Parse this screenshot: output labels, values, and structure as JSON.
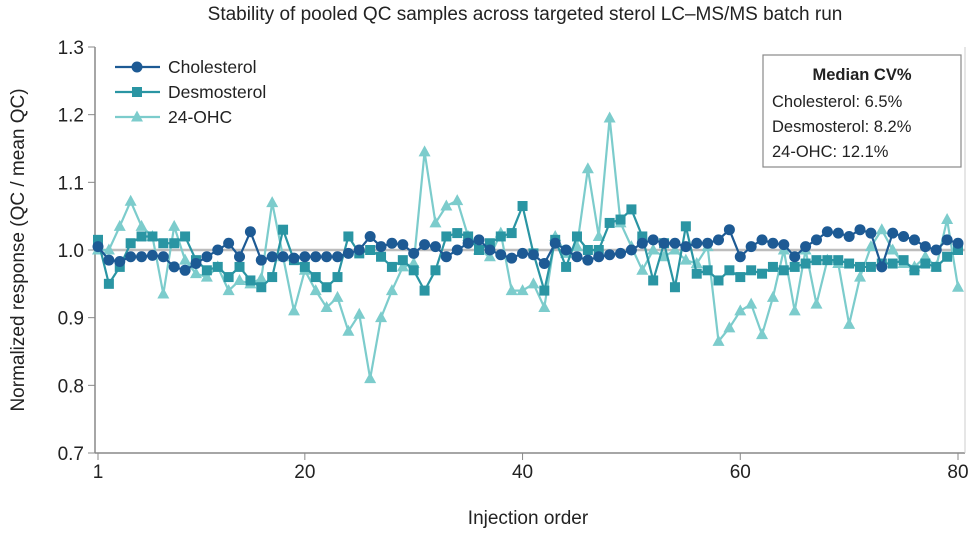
{
  "chart_data": {
    "type": "line",
    "title": "Stability of pooled QC samples across targeted sterol LC–MS/MS batch run",
    "xlabel": "Injection order",
    "ylabel": "Normalized response (QC / mean QC)",
    "xlim": [
      1,
      80
    ],
    "ylim": [
      0.7,
      1.3
    ],
    "xticks": [
      1,
      20,
      40,
      60,
      80
    ],
    "yticks": [
      "0.7",
      "0.8",
      "0.9",
      "1.0",
      "1.1",
      "1.2",
      "1.3"
    ],
    "grid": false,
    "legend_position": "top-left",
    "reference_line": {
      "y": 1.0,
      "color": "#bdbdbd"
    },
    "annotation": {
      "title": "Median CV%",
      "lines": [
        "Cholesterol: 6.5%",
        "Desmosterol: 8.2%",
        "24-OHC: 12.1%"
      ]
    },
    "series": [
      {
        "name": "Cholesterol",
        "marker": "circle",
        "color": "#1d5a94",
        "values": [
          1.005,
          0.985,
          0.983,
          0.99,
          0.99,
          0.992,
          0.99,
          0.975,
          0.97,
          0.98,
          0.99,
          1.0,
          1.01,
          0.99,
          1.027,
          0.985,
          0.99,
          0.99,
          0.988,
          0.99,
          0.99,
          0.99,
          0.99,
          0.995,
          1.0,
          1.02,
          1.005,
          1.01,
          1.008,
          0.995,
          1.008,
          1.005,
          0.99,
          1.0,
          1.01,
          1.015,
          1.0,
          0.993,
          0.988,
          0.995,
          0.993,
          0.98,
          1.01,
          1.0,
          0.99,
          0.985,
          0.99,
          0.993,
          0.995,
          1.0,
          1.01,
          1.015,
          1.01,
          1.01,
          1.005,
          1.01,
          1.01,
          1.015,
          1.03,
          0.99,
          1.005,
          1.015,
          1.01,
          1.008,
          0.99,
          1.005,
          1.015,
          1.027,
          1.025,
          1.02,
          1.03,
          1.025,
          0.975,
          1.025,
          1.02,
          1.015,
          1.005,
          1.0,
          1.015,
          1.01
        ]
      },
      {
        "name": "Desmosterol",
        "marker": "square",
        "color": "#2a95a3",
        "values": [
          1.015,
          0.95,
          0.975,
          1.01,
          1.02,
          1.02,
          1.01,
          1.01,
          1.02,
          0.985,
          0.97,
          0.975,
          0.96,
          0.975,
          0.955,
          0.945,
          0.96,
          1.03,
          0.985,
          0.975,
          0.96,
          0.945,
          0.96,
          1.02,
          0.995,
          1.0,
          0.99,
          0.975,
          0.985,
          0.97,
          0.94,
          0.97,
          1.02,
          1.025,
          1.02,
          1.0,
          1.01,
          1.02,
          1.025,
          1.065,
          0.995,
          0.94,
          1.015,
          0.975,
          1.02,
          1.0,
          1.0,
          1.04,
          1.045,
          1.06,
          1.02,
          0.955,
          1.01,
          0.945,
          1.035,
          0.965,
          0.97,
          0.955,
          0.97,
          0.96,
          0.97,
          0.965,
          0.975,
          0.97,
          0.975,
          0.98,
          0.985,
          0.985,
          0.985,
          0.98,
          0.975,
          0.975,
          0.98,
          0.98,
          0.985,
          0.97,
          0.98,
          0.975,
          0.99,
          1.0
        ]
      },
      {
        "name": "24-OHC",
        "marker": "triangle",
        "color": "#7ccccc",
        "values": [
          1.0,
          1.0,
          1.035,
          1.072,
          1.035,
          1.02,
          0.935,
          1.035,
          0.985,
          0.965,
          0.96,
          0.975,
          0.94,
          0.955,
          0.95,
          0.958,
          1.07,
          0.99,
          0.91,
          0.97,
          0.94,
          0.915,
          0.93,
          0.88,
          0.905,
          0.81,
          0.9,
          0.94,
          0.975,
          0.98,
          1.145,
          1.04,
          1.065,
          1.073,
          1.02,
          1.0,
          0.99,
          1.025,
          0.94,
          0.94,
          0.95,
          0.915,
          1.02,
          0.995,
          1.005,
          1.12,
          1.02,
          1.195,
          1.04,
          1.005,
          0.97,
          1.0,
          0.99,
          1.0,
          0.985,
          0.98,
          1.005,
          0.865,
          0.885,
          0.91,
          0.92,
          0.875,
          0.93,
          1.0,
          0.91,
          1.0,
          0.92,
          0.985,
          0.98,
          0.89,
          0.96,
          1.005,
          1.03,
          1.0,
          0.98,
          0.975,
          0.99,
          0.975,
          1.045,
          0.945
        ]
      }
    ]
  }
}
